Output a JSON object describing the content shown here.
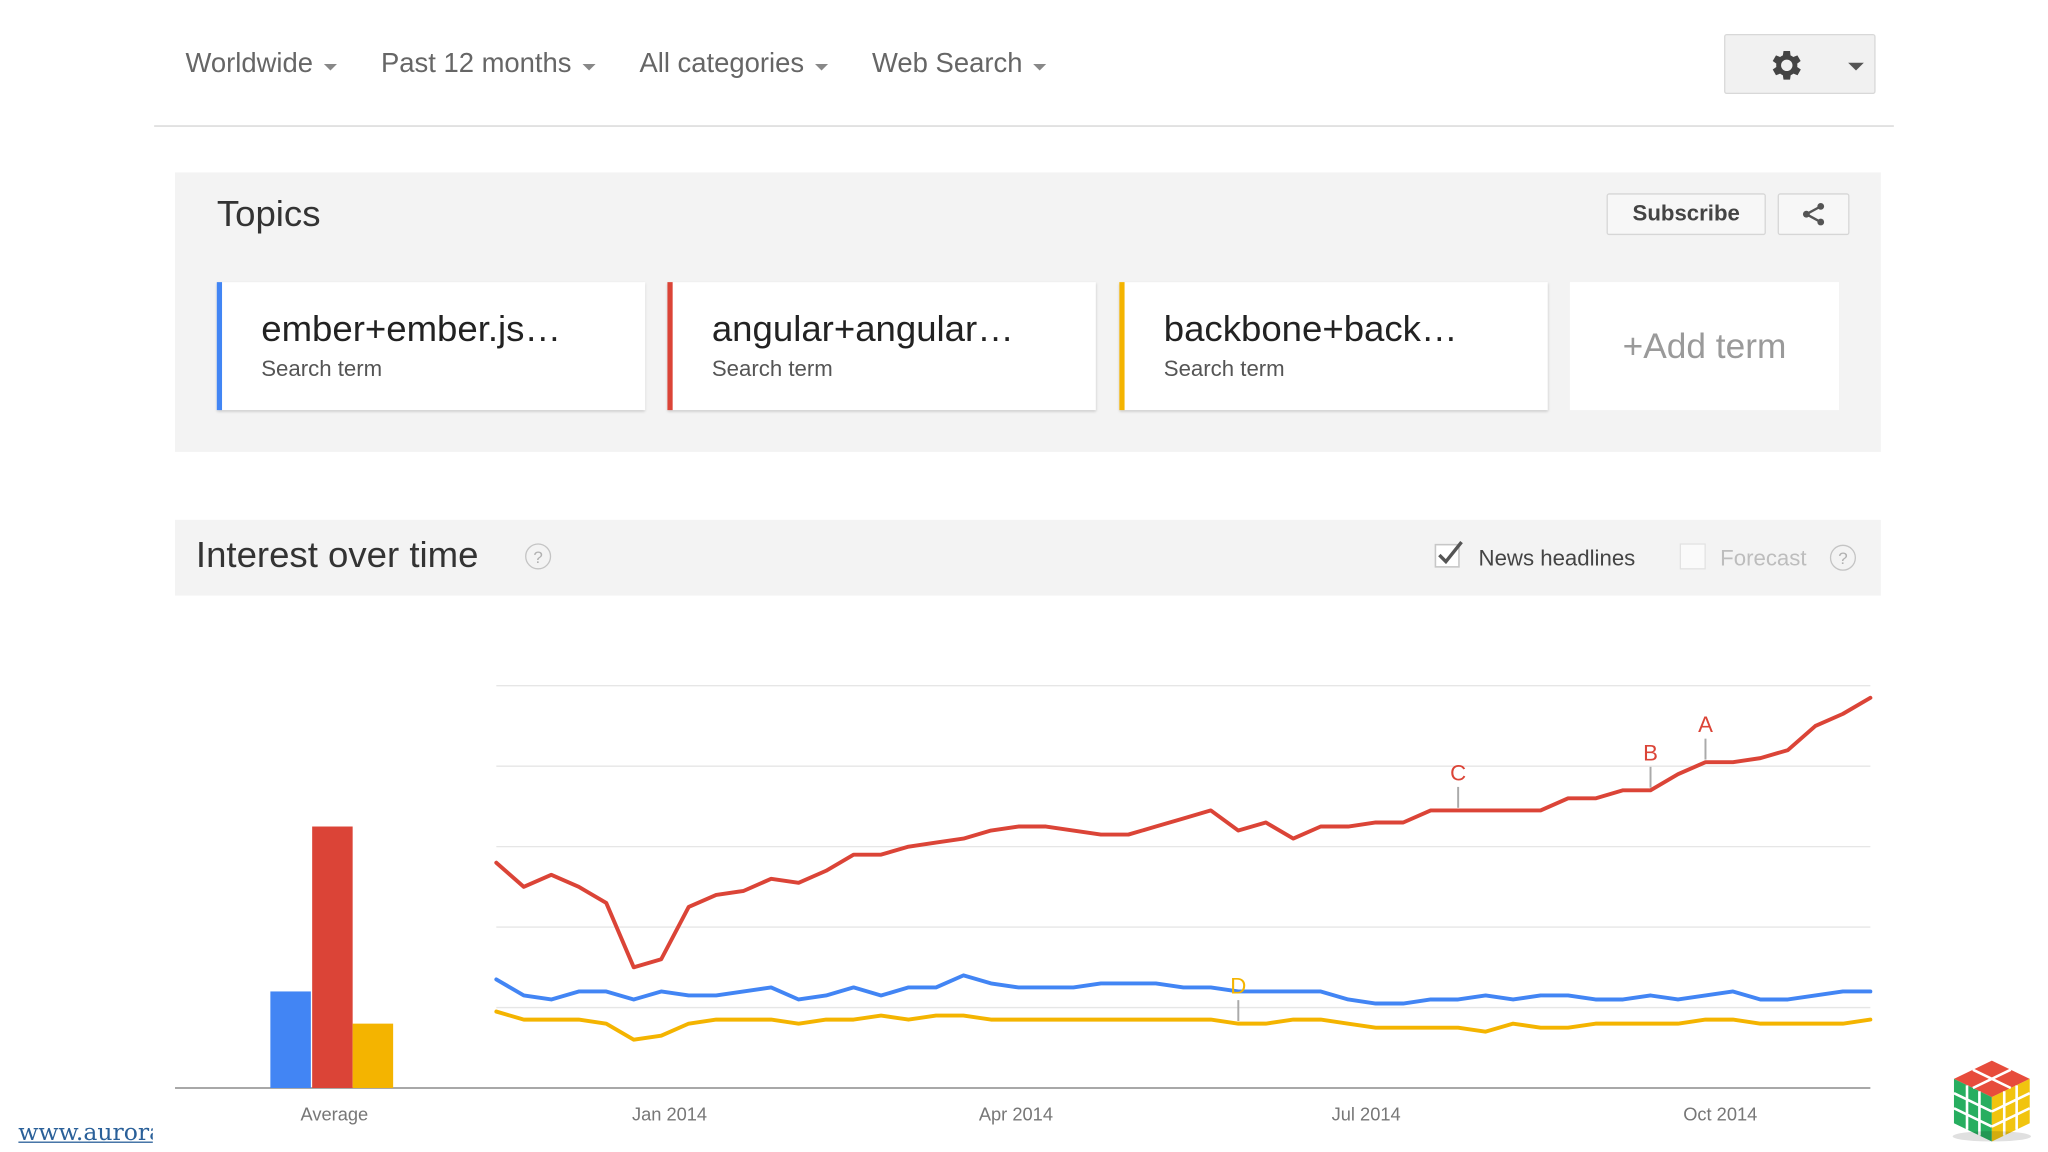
{
  "filters": [
    {
      "label": "Worldwide"
    },
    {
      "label": "Past 12 months"
    },
    {
      "label": "All categories"
    },
    {
      "label": "Web Search"
    }
  ],
  "topics": {
    "title": "Topics",
    "subscribe_label": "Subscribe",
    "terms": [
      {
        "term": "ember+ember.js…",
        "sublabel": "Search term",
        "color": "#4285f4"
      },
      {
        "term": "angular+angular…",
        "sublabel": "Search term",
        "color": "#db4437"
      },
      {
        "term": "backbone+back…",
        "sublabel": "Search term",
        "color": "#f4b400"
      }
    ],
    "add_term_label": "+Add term"
  },
  "interest": {
    "title": "Interest over time",
    "help": "?",
    "news_headlines_label": "News headlines",
    "news_headlines_checked": true,
    "forecast_label": "Forecast",
    "forecast_checked": false
  },
  "footer": {
    "link_text": "www.aurora"
  },
  "chart_data": {
    "type": "line",
    "title": "",
    "x_ticks": [
      "Jan 2014",
      "Apr 2014",
      "Jul 2014",
      "Oct 2014"
    ],
    "average_label": "Average",
    "ylim": [
      0,
      100
    ],
    "grid": true,
    "x_start": "2013-11-17",
    "x_end": "2014-11-09",
    "average": [
      {
        "name": "ember+ember.js…",
        "value": 24,
        "color": "#4285f4"
      },
      {
        "name": "angular+angular…",
        "value": 65,
        "color": "#db4437"
      },
      {
        "name": "backbone+back…",
        "value": 16,
        "color": "#f4b400"
      }
    ],
    "series": [
      {
        "name": "angular+angular…",
        "color": "#db4437",
        "values": [
          56,
          50,
          53,
          50,
          46,
          30,
          32,
          45,
          48,
          49,
          52,
          51,
          54,
          58,
          58,
          60,
          61,
          62,
          64,
          65,
          65,
          64,
          63,
          63,
          65,
          67,
          69,
          64,
          66,
          62,
          65,
          65,
          66,
          66,
          69,
          69,
          69,
          69,
          69,
          72,
          72,
          74,
          74,
          78,
          81,
          81,
          82,
          84,
          90,
          93,
          97
        ]
      },
      {
        "name": "ember+ember.js…",
        "color": "#4285f4",
        "values": [
          27,
          23,
          22,
          24,
          24,
          22,
          24,
          23,
          23,
          24,
          25,
          22,
          23,
          25,
          23,
          25,
          25,
          28,
          26,
          25,
          25,
          25,
          26,
          26,
          26,
          25,
          25,
          24,
          24,
          24,
          24,
          22,
          21,
          21,
          22,
          22,
          23,
          22,
          23,
          23,
          22,
          22,
          23,
          22,
          23,
          24,
          22,
          22,
          23,
          24,
          24
        ]
      },
      {
        "name": "backbone+back…",
        "color": "#f4b400",
        "values": [
          19,
          17,
          17,
          17,
          16,
          12,
          13,
          16,
          17,
          17,
          17,
          16,
          17,
          17,
          18,
          17,
          18,
          18,
          17,
          17,
          17,
          17,
          17,
          17,
          17,
          17,
          17,
          16,
          16,
          17,
          17,
          16,
          15,
          15,
          15,
          15,
          14,
          16,
          15,
          15,
          16,
          16,
          16,
          16,
          17,
          17,
          16,
          16,
          16,
          16,
          17
        ]
      }
    ],
    "annotations": [
      {
        "letter": "A",
        "series": "angular+angular…",
        "index": 44,
        "color": "#db4437"
      },
      {
        "letter": "B",
        "series": "angular+angular…",
        "index": 42,
        "color": "#db4437"
      },
      {
        "letter": "C",
        "series": "angular+angular…",
        "index": 35,
        "color": "#db4437"
      },
      {
        "letter": "D",
        "series": "backbone+back…",
        "index": 27,
        "color": "#f4b400"
      }
    ]
  }
}
